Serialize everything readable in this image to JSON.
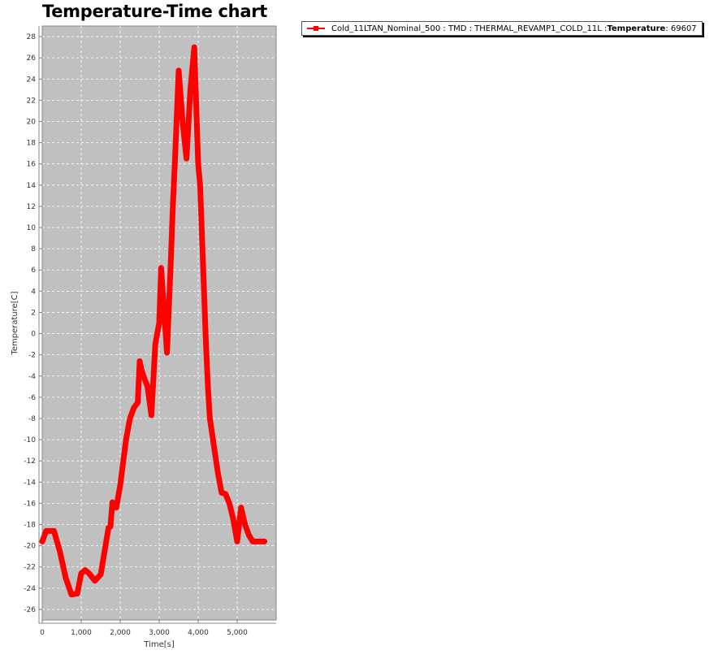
{
  "chart_data": {
    "type": "line",
    "title": "Temperature-Time chart",
    "xlabel": "Time[s]",
    "ylabel": "Temperature[C]",
    "xlim": [
      0,
      6000
    ],
    "ylim": [
      -27,
      29
    ],
    "x_ticks": [
      0,
      1000,
      2000,
      3000,
      4000,
      5000
    ],
    "x_tick_labels": [
      "0",
      "1,000",
      "2,000",
      "3,000",
      "4,000",
      "5,000"
    ],
    "y_ticks": [
      -26,
      -24,
      -22,
      -20,
      -18,
      -16,
      -14,
      -12,
      -10,
      -8,
      -6,
      -4,
      -2,
      0,
      2,
      4,
      6,
      8,
      10,
      12,
      14,
      16,
      18,
      20,
      22,
      24,
      26,
      28
    ],
    "grid": true,
    "background": "#c0c0c0",
    "legend_position": "top-right",
    "legend": {
      "name": "Cold_11LTAN_Nominal_500 : TMD : THERMAL_REVAMP1_COLD_11L : ",
      "quantity": "Temperature",
      "suffix": " : 69607"
    },
    "series": [
      {
        "name": "Cold_11LTAN_Nominal_500 : TMD : THERMAL_REVAMP1_COLD_11L : Temperature : 69607",
        "color": "#ff0000",
        "x": [
          0,
          100,
          300,
          450,
          600,
          750,
          900,
          1000,
          1100,
          1200,
          1350,
          1500,
          1700,
          1750,
          1800,
          1900,
          2000,
          2150,
          2250,
          2350,
          2450,
          2500,
          2550,
          2600,
          2700,
          2800,
          2900,
          3000,
          3050,
          3100,
          3200,
          3300,
          3350,
          3400,
          3500,
          3600,
          3700,
          3800,
          3900,
          4000,
          4050,
          4100,
          4150,
          4200,
          4250,
          4300,
          4500,
          4600,
          4700,
          4800,
          4900,
          5000,
          5100,
          5200,
          5300,
          5400,
          5500,
          5600,
          5700
        ],
        "y": [
          -19.6,
          -18.6,
          -18.6,
          -20.5,
          -23.0,
          -24.6,
          -24.5,
          -22.6,
          -22.3,
          -22.6,
          -23.3,
          -22.7,
          -18.3,
          -18.2,
          -15.9,
          -16.4,
          -14.3,
          -10.0,
          -8.0,
          -7.0,
          -6.5,
          -2.6,
          -3.5,
          -4.0,
          -5.0,
          -7.7,
          -1.0,
          1.0,
          6.2,
          3.5,
          -1.8,
          7.0,
          12.0,
          16.0,
          24.8,
          20.0,
          16.5,
          23.0,
          27.0,
          16.0,
          14.0,
          9.0,
          4.0,
          -1.0,
          -5.0,
          -8.0,
          -13.0,
          -15.0,
          -15.1,
          -16.0,
          -17.5,
          -19.6,
          -16.4,
          -18.0,
          -19.0,
          -19.6,
          -19.6,
          -19.6,
          -19.6
        ]
      }
    ]
  }
}
